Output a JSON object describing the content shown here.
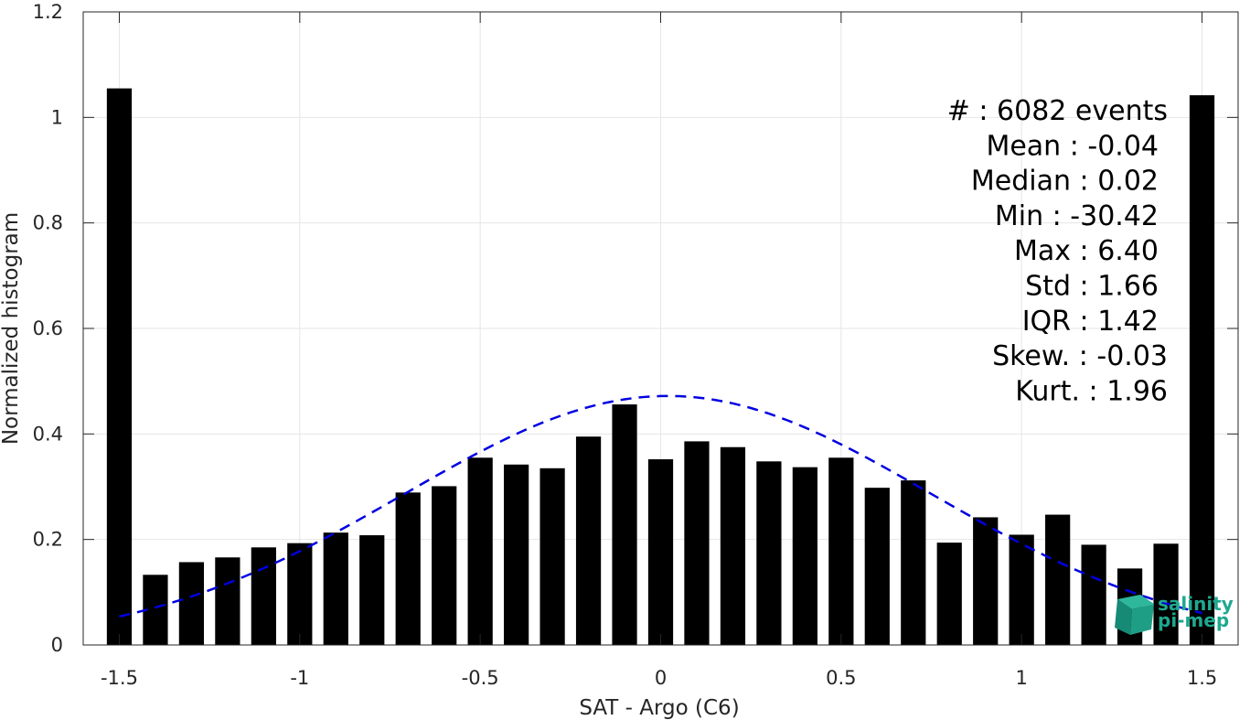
{
  "chart_data": {
    "type": "bar",
    "xlabel": "SAT - Argo (C6)",
    "ylabel": "Normalized histogram",
    "xlim": [
      -1.6,
      1.6
    ],
    "ylim": [
      0,
      1.2
    ],
    "xticks": [
      -1.5,
      -1,
      -0.5,
      0,
      0.5,
      1,
      1.5
    ],
    "xtick_labels": [
      "-1.5",
      "-1",
      "-0.5",
      "0",
      "0.5",
      "1",
      "1.5"
    ],
    "yticks": [
      0,
      0.2,
      0.4,
      0.6,
      0.8,
      1,
      1.2
    ],
    "ytick_labels": [
      "0",
      "0.2",
      "0.4",
      "0.6",
      "0.8",
      "1",
      "1.2"
    ],
    "grid": true,
    "bar_color": "#000000",
    "bin_width": 0.1,
    "x": [
      -1.5,
      -1.4,
      -1.3,
      -1.2,
      -1.1,
      -1.0,
      -0.9,
      -0.8,
      -0.7,
      -0.6,
      -0.5,
      -0.4,
      -0.3,
      -0.2,
      -0.1,
      0.0,
      0.1,
      0.2,
      0.3,
      0.4,
      0.5,
      0.6,
      0.7,
      0.8,
      0.9,
      1.0,
      1.1,
      1.2,
      1.3,
      1.4,
      1.5
    ],
    "values": [
      1.055,
      0.133,
      0.157,
      0.166,
      0.185,
      0.193,
      0.213,
      0.208,
      0.289,
      0.301,
      0.355,
      0.342,
      0.335,
      0.395,
      0.456,
      0.352,
      0.386,
      0.375,
      0.348,
      0.337,
      0.355,
      0.298,
      0.312,
      0.194,
      0.242,
      0.209,
      0.247,
      0.19,
      0.145,
      0.192,
      1.042
    ],
    "fit_curve": {
      "style": "dashed",
      "color": "#0000e0",
      "mean": 0.02,
      "peak": 0.472,
      "sigma": 0.73,
      "x_range": [
        -1.5,
        1.5
      ]
    },
    "stats": [
      "#  : 6082 events",
      "Mean : -0.04",
      "Median : 0.02",
      "Min : -30.42",
      "Max : 6.40",
      "Std : 1.66",
      "IQR : 1.42",
      "Skew. : -0.03",
      "Kurt. : 1.96"
    ]
  },
  "logo": {
    "line1": "salinity",
    "line2": "pi-mep",
    "color": "#1fa88f"
  }
}
